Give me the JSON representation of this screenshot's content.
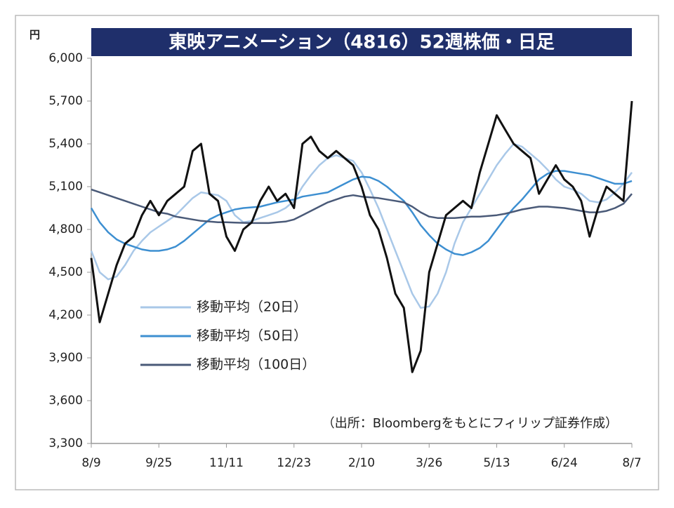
{
  "chart_data": {
    "type": "line",
    "title": "東映アニメーション（4816）52週株価・日足",
    "y_unit_label": "円",
    "annotation": "（出所：Bloombergをもとにフィリップ証券作成）",
    "categories": [
      "8/9",
      null,
      null,
      null,
      null,
      null,
      null,
      null,
      "9/25",
      null,
      null,
      null,
      null,
      null,
      null,
      null,
      "11/11",
      null,
      null,
      null,
      null,
      null,
      null,
      null,
      "12/23",
      null,
      null,
      null,
      null,
      null,
      null,
      null,
      "2/10",
      null,
      null,
      null,
      null,
      null,
      null,
      null,
      "3/26",
      null,
      null,
      null,
      null,
      null,
      null,
      null,
      "5/13",
      null,
      null,
      null,
      null,
      null,
      null,
      null,
      "6/24",
      null,
      null,
      null,
      null,
      null,
      null,
      null,
      "8/7"
    ],
    "series": [
      {
        "name": null,
        "color": "#111111",
        "values": [
          4600,
          4150,
          4350,
          4550,
          4700,
          4750,
          4900,
          5000,
          4900,
          5000,
          5050,
          5100,
          5350,
          5400,
          5050,
          5000,
          4750,
          4650,
          4800,
          4850,
          5000,
          5100,
          5000,
          5050,
          4950,
          5400,
          5450,
          5350,
          5300,
          5350,
          5300,
          5250,
          5100,
          4900,
          4800,
          4600,
          4350,
          4250,
          3800,
          3950,
          4500,
          4700,
          4900,
          4950,
          5000,
          4950,
          5200,
          5400,
          5600,
          5500,
          5400,
          5350,
          5300,
          5050,
          5150,
          5250,
          5150,
          5100,
          5000,
          4750,
          4950,
          5100,
          5050,
          5000,
          5700
        ]
      },
      {
        "name": "移動平均（20日）",
        "color": "#a9c8e8",
        "values": [
          4650,
          4500,
          4450,
          4470,
          4550,
          4650,
          4720,
          4780,
          4820,
          4860,
          4900,
          4960,
          5020,
          5060,
          5050,
          5040,
          5000,
          4900,
          4850,
          4860,
          4880,
          4900,
          4920,
          4950,
          5000,
          5100,
          5180,
          5250,
          5300,
          5320,
          5300,
          5280,
          5200,
          5080,
          4950,
          4800,
          4650,
          4500,
          4350,
          4250,
          4260,
          4350,
          4500,
          4700,
          4850,
          4950,
          5050,
          5150,
          5250,
          5330,
          5400,
          5380,
          5330,
          5280,
          5220,
          5150,
          5100,
          5080,
          5050,
          5000,
          4990,
          5010,
          5060,
          5120,
          5200
        ]
      },
      {
        "name": "移動平均（50日）",
        "color": "#3d8fd1",
        "values": [
          4950,
          4850,
          4780,
          4730,
          4700,
          4680,
          4660,
          4650,
          4650,
          4660,
          4680,
          4720,
          4770,
          4820,
          4870,
          4900,
          4920,
          4940,
          4950,
          4955,
          4960,
          4975,
          4990,
          5000,
          5010,
          5030,
          5040,
          5050,
          5060,
          5090,
          5120,
          5150,
          5170,
          5165,
          5140,
          5100,
          5050,
          5000,
          4920,
          4830,
          4760,
          4700,
          4660,
          4630,
          4620,
          4640,
          4670,
          4720,
          4800,
          4880,
          4950,
          5010,
          5080,
          5150,
          5190,
          5210,
          5210,
          5200,
          5190,
          5180,
          5160,
          5140,
          5120,
          5120,
          5140
        ]
      },
      {
        "name": "移動平均（100日）",
        "color": "#4a5a78",
        "values": [
          5080,
          5060,
          5040,
          5020,
          5000,
          4980,
          4960,
          4940,
          4920,
          4910,
          4890,
          4880,
          4870,
          4860,
          4855,
          4850,
          4850,
          4848,
          4846,
          4845,
          4845,
          4845,
          4850,
          4855,
          4870,
          4900,
          4930,
          4960,
          4990,
          5010,
          5030,
          5040,
          5030,
          5025,
          5020,
          5010,
          5000,
          4990,
          4960,
          4920,
          4890,
          4880,
          4880,
          4880,
          4885,
          4890,
          4890,
          4895,
          4900,
          4910,
          4925,
          4940,
          4950,
          4960,
          4960,
          4955,
          4950,
          4940,
          4930,
          4920,
          4920,
          4930,
          4950,
          4980,
          5050
        ]
      }
    ],
    "ylim": [
      3300,
      6000
    ],
    "yticks": [
      {
        "value": 3300,
        "label": "3,300"
      },
      {
        "value": 3600,
        "label": "3,600"
      },
      {
        "value": 3900,
        "label": "3,900"
      },
      {
        "value": 4200,
        "label": "4,200"
      },
      {
        "value": 4500,
        "label": "4,500"
      },
      {
        "value": 4800,
        "label": "4,800"
      },
      {
        "value": 5100,
        "label": "5,100"
      },
      {
        "value": 5400,
        "label": "5,400"
      },
      {
        "value": 5700,
        "label": "5,700"
      },
      {
        "value": 6000,
        "label": "6,000"
      }
    ],
    "grid": false
  }
}
